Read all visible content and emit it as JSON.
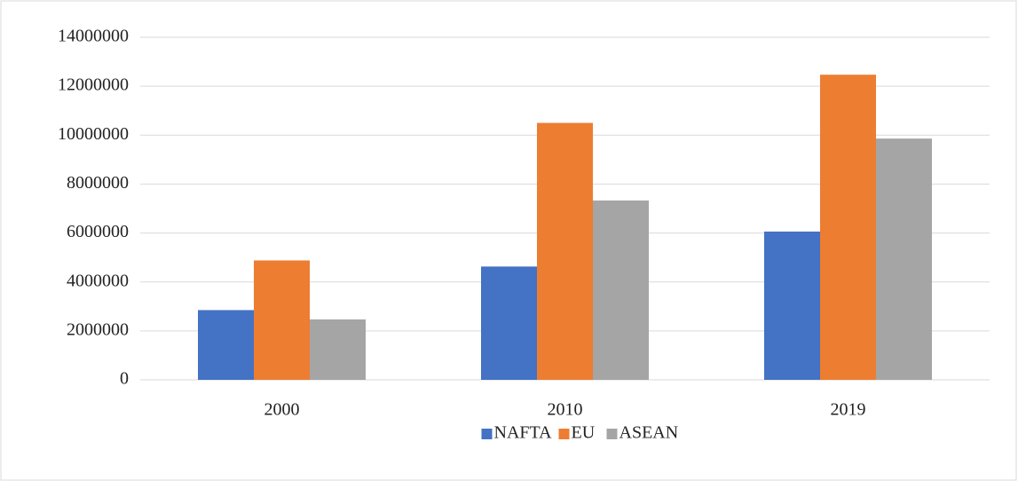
{
  "chart_data": {
    "type": "bar",
    "categories": [
      "2000",
      "2010",
      "2019"
    ],
    "series": [
      {
        "name": "NAFTA",
        "color": "#4472c4",
        "values": [
          2850000,
          4630000,
          6060000
        ]
      },
      {
        "name": "EU",
        "color": "#ed7d31",
        "values": [
          4880000,
          10500000,
          12470000
        ]
      },
      {
        "name": "ASEAN",
        "color": "#a5a5a5",
        "values": [
          2470000,
          7330000,
          9860000
        ]
      }
    ],
    "ylim": [
      0,
      14000000
    ],
    "yticks": [
      0,
      2000000,
      4000000,
      6000000,
      8000000,
      10000000,
      12000000,
      14000000
    ],
    "grid": true,
    "legend": "bottom"
  }
}
